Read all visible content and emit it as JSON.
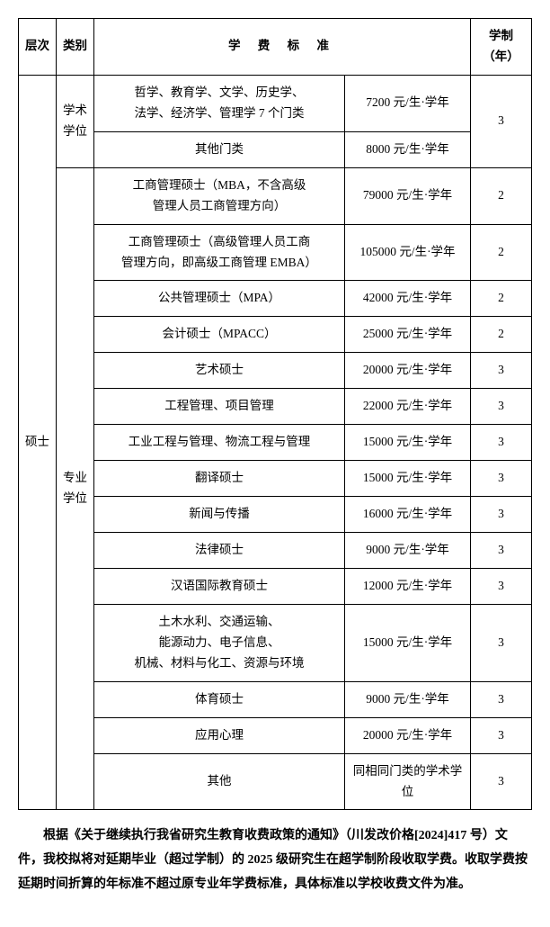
{
  "headers": {
    "level": "层次",
    "category": "类别",
    "fee_standard": "学 费 标 准",
    "duration": "学制（年）"
  },
  "level_label": "硕士",
  "cat_academic": "学术\n学位",
  "cat_professional": "专业\n学位",
  "rows": {
    "r0": {
      "item": "哲学、教育学、文学、历史学、\n法学、经济学、管理学 7 个门类",
      "fee": "7200 元/生·学年",
      "dur": "3"
    },
    "r1": {
      "item": "其他门类",
      "fee": "8000 元/生·学年"
    },
    "r2": {
      "item": "工商管理硕士（MBA，不含高级\n管理人员工商管理方向）",
      "fee": "79000 元/生·学年",
      "dur": "2"
    },
    "r3": {
      "item": "工商管理硕士（高级管理人员工商\n管理方向，即高级工商管理 EMBA）",
      "fee": "105000 元/生·学年",
      "dur": "2"
    },
    "r4": {
      "item": "公共管理硕士（MPA）",
      "fee": "42000 元/生·学年",
      "dur": "2"
    },
    "r5": {
      "item": "会计硕士（MPACC）",
      "fee": "25000 元/生·学年",
      "dur": "2"
    },
    "r6": {
      "item": "艺术硕士",
      "fee": "20000 元/生·学年",
      "dur": "3"
    },
    "r7": {
      "item": "工程管理、项目管理",
      "fee": "22000 元/生·学年",
      "dur": "3"
    },
    "r8": {
      "item": "工业工程与管理、物流工程与管理",
      "fee": "15000 元/生·学年",
      "dur": "3"
    },
    "r9": {
      "item": "翻译硕士",
      "fee": "15000 元/生·学年",
      "dur": "3"
    },
    "r10": {
      "item": "新闻与传播",
      "fee": "16000 元/生·学年",
      "dur": "3"
    },
    "r11": {
      "item": "法律硕士",
      "fee": "9000 元/生·学年",
      "dur": "3"
    },
    "r12": {
      "item": "汉语国际教育硕士",
      "fee": "12000 元/生·学年",
      "dur": "3"
    },
    "r13": {
      "item": "土木水利、交通运输、\n能源动力、电子信息、\n机械、材料与化工、资源与环境",
      "fee": "15000 元/生·学年",
      "dur": "3"
    },
    "r14": {
      "item": "体育硕士",
      "fee": "9000 元/生·学年",
      "dur": "3"
    },
    "r15": {
      "item": "应用心理",
      "fee": "20000 元/生·学年",
      "dur": "3"
    },
    "r16": {
      "item": "其他",
      "fee": "同相同门类的学术学位",
      "dur": "3"
    }
  },
  "note": "根据《关于继续执行我省研究生教育收费政策的通知》（川发改价格[2024]417 号）文件，我校拟将对延期毕业（超过学制）的 2025 级研究生在超学制阶段收取学费。收取学费按延期时间折算的年标准不超过原专业年学费标准，具体标准以学校收费文件为准。",
  "style": {
    "border_color": "#000000",
    "background_color": "#ffffff",
    "text_color": "#000000",
    "font_family": "SimSun",
    "cell_fontsize_pt": 10.5,
    "note_fontsize_pt": 10.5,
    "line_height": 1.7
  }
}
